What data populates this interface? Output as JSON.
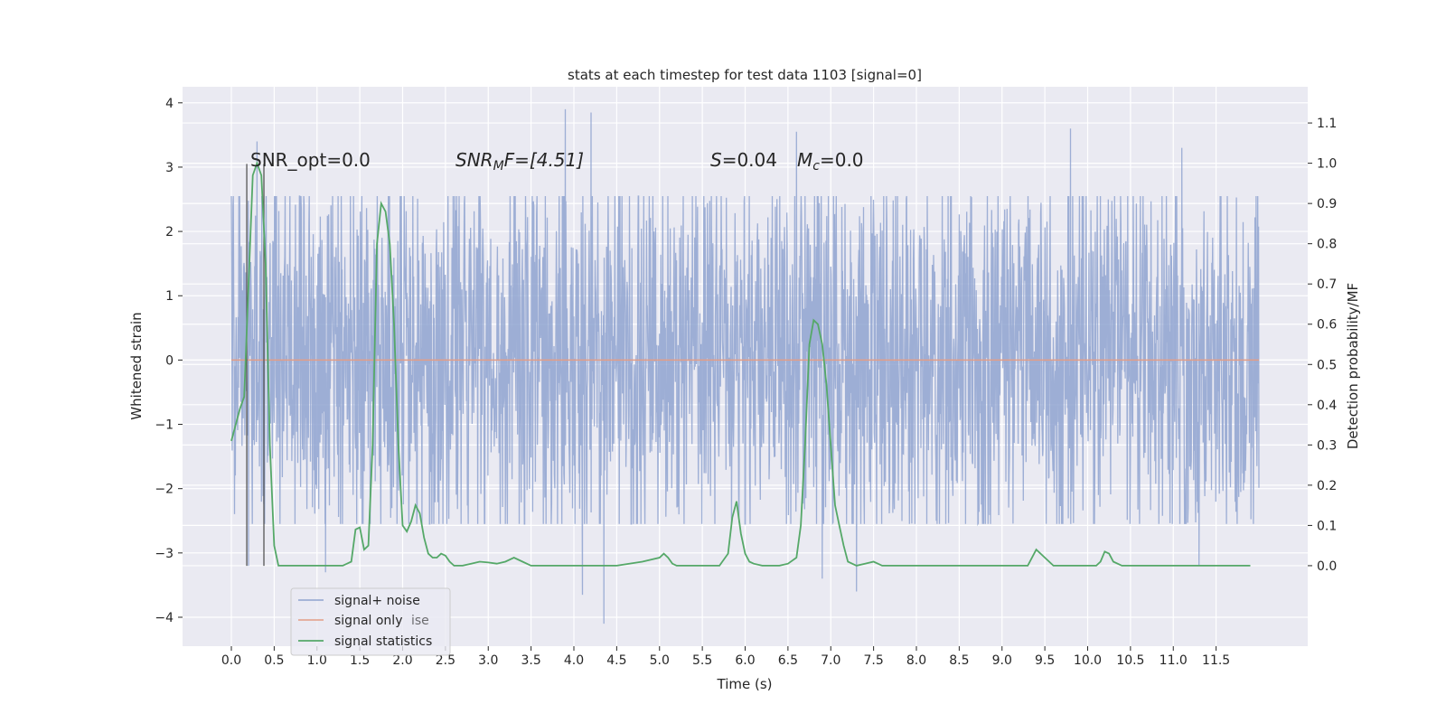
{
  "chart_data": {
    "type": "line",
    "title": "stats at each timestep for test data 1103 [signal=0]",
    "xlabel": "Time (s)",
    "ylabel_left": "Whitened strain",
    "ylabel_right": "Detection probability/MF",
    "xlim": [
      -0.57,
      12.57
    ],
    "ylim_left": [
      -4.45,
      4.25
    ],
    "ylim_right": [
      -0.2,
      1.19
    ],
    "grid": true,
    "x_ticks": [
      "0.0",
      "0.5",
      "1.0",
      "1.5",
      "2.0",
      "2.5",
      "3.0",
      "3.5",
      "4.0",
      "4.5",
      "5.0",
      "5.5",
      "6.0",
      "6.5",
      "7.0",
      "7.5",
      "8.0",
      "8.5",
      "9.0",
      "9.5",
      "10.0",
      "10.5",
      "11.0",
      "11.5"
    ],
    "y_ticks_left": [
      "−4",
      "−3",
      "−2",
      "−1",
      "0",
      "1",
      "2",
      "3",
      "4"
    ],
    "y_ticks_right": [
      "0.0",
      "0.1",
      "0.2",
      "0.3",
      "0.4",
      "0.5",
      "0.6",
      "0.7",
      "0.8",
      "0.9",
      "1.0",
      "1.1"
    ],
    "annotations": {
      "snr_opt": "SNR_opt=0.0",
      "snr_mf_base": "SNR",
      "snr_mf_sub": "M",
      "snr_mf_tail": "F=[4.51]",
      "s_base": "S",
      "s_tail": "=0.04",
      "mc_base": "M",
      "mc_sub": "c",
      "mc_tail": "=0.0"
    },
    "markers_x": [
      0.18,
      0.38
    ],
    "legend": {
      "placement": "lower-left",
      "entries": [
        {
          "label": "signal+ noise",
          "color": "#8fa3d0"
        },
        {
          "label": "signal only",
          "color": "#e39d86"
        },
        {
          "label": "signal statistics",
          "color": "#55a868"
        }
      ],
      "overlap_text": "ise"
    },
    "series": [
      {
        "name": "signal+ noise",
        "color": "#8fa3d0",
        "x_range": [
          0.0,
          12.0
        ],
        "typical_band": [
          -2.0,
          2.0
        ],
        "peaks_max": [
          [
            0.3,
            3.4
          ],
          [
            3.9,
            3.9
          ],
          [
            4.2,
            3.85
          ],
          [
            6.6,
            3.55
          ],
          [
            9.8,
            3.6
          ],
          [
            11.1,
            3.3
          ]
        ],
        "peaks_min": [
          [
            0.2,
            -3.2
          ],
          [
            1.1,
            -3.3
          ],
          [
            4.1,
            -3.65
          ],
          [
            4.35,
            -4.1
          ],
          [
            6.9,
            -3.4
          ],
          [
            7.3,
            -3.6
          ],
          [
            11.3,
            -3.2
          ]
        ]
      },
      {
        "name": "signal only",
        "color": "#e39d86",
        "x": [
          0.0,
          12.0
        ],
        "y": [
          0.0,
          0.0
        ]
      },
      {
        "name": "signal statistics",
        "color": "#55a868",
        "x": [
          0.0,
          0.1,
          0.15,
          0.25,
          0.3,
          0.35,
          0.4,
          0.45,
          0.5,
          0.55,
          0.6,
          0.7,
          0.8,
          0.9,
          1.0,
          1.1,
          1.2,
          1.3,
          1.4,
          1.45,
          1.5,
          1.55,
          1.6,
          1.65,
          1.7,
          1.75,
          1.8,
          1.85,
          1.9,
          1.95,
          2.0,
          2.05,
          2.1,
          2.15,
          2.2,
          2.25,
          2.3,
          2.35,
          2.4,
          2.45,
          2.5,
          2.55,
          2.6,
          2.65,
          2.7,
          2.8,
          2.9,
          3.0,
          3.1,
          3.2,
          3.3,
          3.4,
          3.5,
          3.6,
          3.7,
          3.8,
          3.9,
          4.0,
          4.1,
          4.2,
          4.3,
          4.5,
          4.8,
          5.0,
          5.05,
          5.1,
          5.15,
          5.2,
          5.3,
          5.5,
          5.7,
          5.8,
          5.85,
          5.9,
          5.95,
          6.0,
          6.05,
          6.1,
          6.2,
          6.3,
          6.4,
          6.5,
          6.6,
          6.65,
          6.7,
          6.75,
          6.8,
          6.85,
          6.9,
          6.95,
          7.0,
          7.05,
          7.1,
          7.15,
          7.2,
          7.3,
          7.4,
          7.5,
          7.55,
          7.6,
          7.7,
          7.8,
          7.9,
          8.0,
          8.5,
          9.0,
          9.3,
          9.4,
          9.5,
          9.6,
          9.7,
          9.8,
          9.9,
          10.0,
          10.1,
          10.15,
          10.2,
          10.25,
          10.3,
          10.4,
          10.5,
          11.0,
          11.5,
          11.9
        ],
        "y": [
          0.31,
          0.39,
          0.42,
          0.97,
          1.0,
          0.97,
          0.75,
          0.3,
          0.05,
          0.0,
          0.0,
          0.0,
          0.0,
          0.0,
          0.0,
          0.0,
          0.0,
          0.0,
          0.01,
          0.09,
          0.095,
          0.04,
          0.05,
          0.3,
          0.8,
          0.9,
          0.88,
          0.8,
          0.6,
          0.3,
          0.1,
          0.085,
          0.11,
          0.15,
          0.13,
          0.07,
          0.03,
          0.02,
          0.02,
          0.03,
          0.025,
          0.01,
          0.0,
          0.0,
          0.0,
          0.005,
          0.01,
          0.008,
          0.005,
          0.01,
          0.02,
          0.01,
          0.0,
          0.0,
          0.0,
          0.0,
          0.0,
          0.0,
          0.0,
          0.0,
          0.0,
          0.0,
          0.01,
          0.02,
          0.03,
          0.02,
          0.005,
          0.0,
          0.0,
          0.0,
          0.0,
          0.03,
          0.12,
          0.16,
          0.08,
          0.03,
          0.01,
          0.005,
          0.0,
          0.0,
          0.0,
          0.005,
          0.02,
          0.1,
          0.3,
          0.55,
          0.61,
          0.6,
          0.55,
          0.45,
          0.3,
          0.15,
          0.1,
          0.05,
          0.01,
          0.0,
          0.005,
          0.01,
          0.005,
          0.0,
          0.0,
          0.0,
          0.0,
          0.0,
          0.0,
          0.0,
          0.0,
          0.04,
          0.02,
          0.0,
          0.0,
          0.0,
          0.0,
          0.0,
          0.0,
          0.01,
          0.035,
          0.03,
          0.01,
          0.0,
          0.0,
          0.0,
          0.0,
          0.0
        ]
      }
    ]
  }
}
